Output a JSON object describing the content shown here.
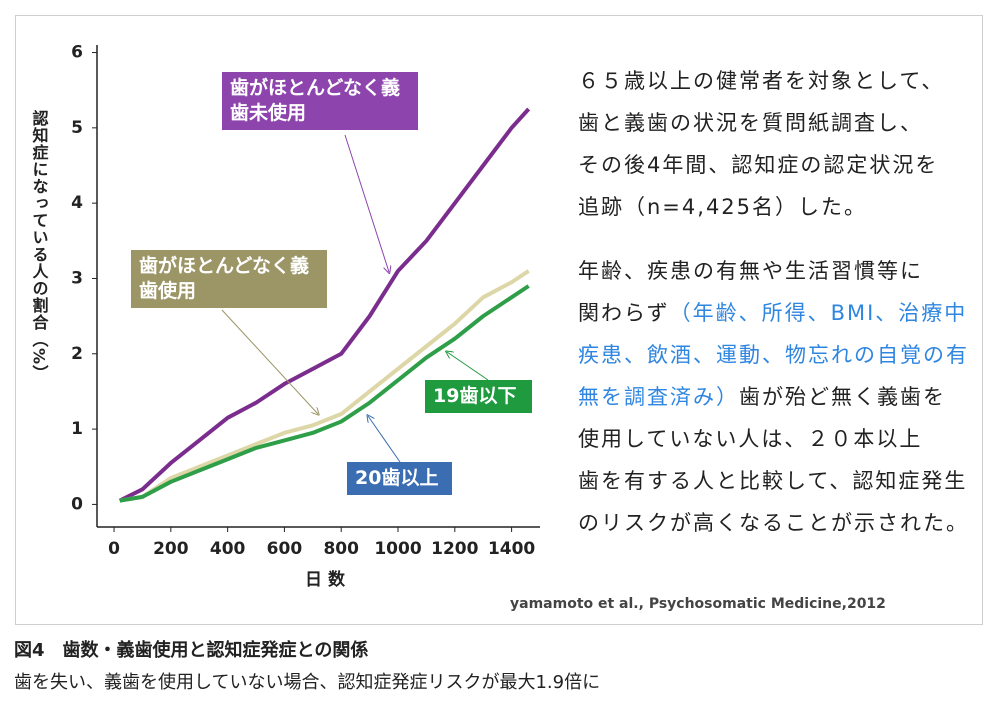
{
  "chart_data": {
    "type": "line",
    "y_label": "認知症になっている人の割合（%）",
    "x_label": "日 数",
    "xlim": [
      -60,
      1500
    ],
    "xticks": [
      0,
      200,
      400,
      600,
      800,
      1000,
      1200,
      1400
    ],
    "ylim": [
      -0.3,
      6.1
    ],
    "yticks": [
      0,
      1,
      2,
      3,
      4,
      5,
      6
    ],
    "x": [
      20,
      100,
      200,
      300,
      400,
      500,
      600,
      700,
      800,
      900,
      1000,
      1100,
      1200,
      1300,
      1400,
      1460
    ],
    "series": [
      {
        "name": "歯がほとんどなく義歯未使用",
        "color": "#7b2d8e",
        "label_color": "#8e44ad",
        "values": [
          0.05,
          0.2,
          0.55,
          0.85,
          1.15,
          1.35,
          1.6,
          1.8,
          2.0,
          2.5,
          3.1,
          3.5,
          4.0,
          4.5,
          5.0,
          5.25
        ]
      },
      {
        "name": "歯がほとんどなく義歯使用",
        "color": "#ddd6a6",
        "label_color": "#9c9566",
        "values": [
          0.05,
          0.1,
          0.35,
          0.5,
          0.65,
          0.8,
          0.95,
          1.05,
          1.2,
          1.5,
          1.8,
          2.1,
          2.4,
          2.75,
          2.95,
          3.1
        ]
      },
      {
        "name": "19歯以下",
        "color": "#2e9e48",
        "label_color": "#1f9a3e",
        "values": [
          0.05,
          0.1,
          0.3,
          0.45,
          0.6,
          0.75,
          0.85,
          0.95,
          1.1,
          1.35,
          1.65,
          1.95,
          2.2,
          2.5,
          2.75,
          2.9
        ]
      }
    ],
    "annotations": [
      {
        "text": "20歯以上",
        "color": "#3b6db3"
      }
    ]
  },
  "text": {
    "paragraphs": [
      [
        [
          {
            "text": "６５歳以上の健常者を対象として、"
          }
        ],
        [
          {
            "text": "歯と義歯の状況を質問紙調査し、"
          }
        ],
        [
          {
            "text": "その後4年間、認知症の認定状況を"
          }
        ],
        [
          {
            "text": "追跡（n=4,425名）した。"
          }
        ]
      ],
      [
        [
          {
            "text": "年齢、疾患の有無や生活習慣等に"
          }
        ],
        [
          {
            "text": "関わらず"
          },
          {
            "text": "（年齢、所得、BMI、治療中",
            "color": "#2f86e0"
          }
        ],
        [
          {
            "text": "疾患、飲酒、運動、物忘れの自覚の有",
            "color": "#2f86e0"
          }
        ],
        [
          {
            "text": "無を調査済み）",
            "color": "#2f86e0"
          },
          {
            "text": "歯が殆ど無く義歯を"
          }
        ],
        [
          {
            "text": "使用していない人は、２０本以上"
          }
        ],
        [
          {
            "text": "歯を有する人と比較して、認知症発生"
          }
        ],
        [
          {
            "text": "のリスクが高くなることが示された。"
          }
        ]
      ]
    ]
  },
  "source": "yamamoto et al., Psychosomatic Medicine,2012",
  "caption": {
    "title": "図4　歯数・義歯使用と認知症発症との関係",
    "subtitle": "歯を失い、義歯を使用していない場合、認知症発症リスクが最大1.9倍に"
  }
}
